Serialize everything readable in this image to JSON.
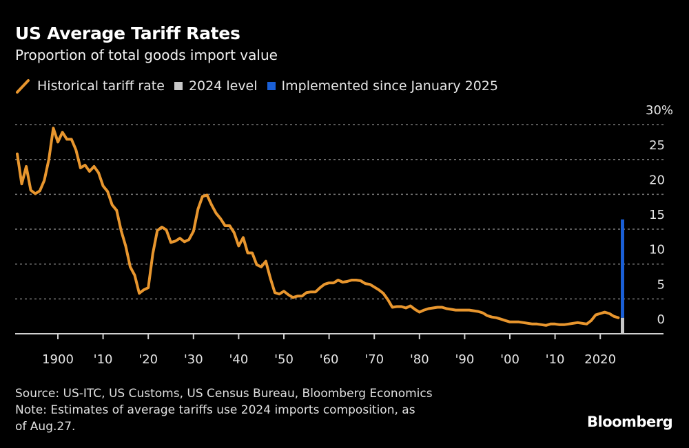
{
  "header": {
    "title": "US Average Tariff Rates",
    "subtitle": "Proportion of total goods import value"
  },
  "legend": [
    {
      "label": "Historical tariff rate",
      "color": "#e8962e",
      "icon": "line-slash"
    },
    {
      "label": "2024 level",
      "color": "#c8c8c8",
      "icon": "square"
    },
    {
      "label": "Implemented since January 2025",
      "color": "#1a5fd6",
      "icon": "square"
    }
  ],
  "footer": {
    "source": "Source: US-ITC, US Customs, US Census Bureau, Bloomberg Economics",
    "note_line1": "Note: Estimates of average tariffs use 2024 imports composition, as",
    "note_line2": "of Aug.27.",
    "logo": "Bloomberg"
  },
  "chart_data": {
    "type": "line",
    "title": "US Average Tariff Rates",
    "subtitle": "Proportion of total goods import value",
    "xlabel": "",
    "ylabel": "",
    "xlim": [
      1891,
      2025
    ],
    "ylim": [
      0,
      30
    ],
    "y_unit": "%",
    "grid": true,
    "legend_position": "top-left",
    "x_ticks": [
      1900,
      1910,
      1920,
      1930,
      1940,
      1950,
      1960,
      1970,
      1980,
      1990,
      2000,
      2010,
      2020
    ],
    "x_tick_labels": [
      "1900",
      "'10",
      "'20",
      "'30",
      "'40",
      "'50",
      "'60",
      "'70",
      "'80",
      "'90",
      "'00",
      "'10",
      "2020"
    ],
    "y_ticks": [
      0,
      5,
      10,
      15,
      20,
      25,
      30
    ],
    "y_tick_labels": [
      "0",
      "5",
      "10",
      "15",
      "20",
      "25",
      "30%"
    ],
    "series": [
      {
        "name": "Historical tariff rate",
        "color": "#e8962e",
        "x": [
          1891,
          1892,
          1893,
          1894,
          1895,
          1896,
          1897,
          1898,
          1899,
          1900,
          1901,
          1902,
          1903,
          1904,
          1905,
          1906,
          1907,
          1908,
          1909,
          1910,
          1911,
          1912,
          1913,
          1914,
          1915,
          1916,
          1917,
          1918,
          1919,
          1920,
          1921,
          1922,
          1923,
          1924,
          1925,
          1926,
          1927,
          1928,
          1929,
          1930,
          1931,
          1932,
          1933,
          1934,
          1935,
          1936,
          1937,
          1938,
          1939,
          1940,
          1941,
          1942,
          1943,
          1944,
          1945,
          1946,
          1947,
          1948,
          1949,
          1950,
          1951,
          1952,
          1953,
          1954,
          1955,
          1956,
          1957,
          1958,
          1959,
          1960,
          1961,
          1962,
          1963,
          1964,
          1965,
          1966,
          1967,
          1968,
          1969,
          1970,
          1971,
          1972,
          1973,
          1974,
          1975,
          1976,
          1977,
          1978,
          1979,
          1980,
          1981,
          1982,
          1983,
          1984,
          1985,
          1986,
          1987,
          1988,
          1989,
          1990,
          1991,
          1992,
          1993,
          1994,
          1995,
          1996,
          1997,
          1998,
          1999,
          2000,
          2001,
          2002,
          2003,
          2004,
          2005,
          2006,
          2007,
          2008,
          2009,
          2010,
          2011,
          2012,
          2013,
          2014,
          2015,
          2016,
          2017,
          2018,
          2019,
          2020,
          2021,
          2022,
          2023,
          2024
        ],
        "values": [
          25.8,
          21.5,
          24.0,
          20.6,
          20.1,
          20.5,
          22.0,
          25.0,
          29.5,
          27.5,
          28.9,
          27.9,
          27.9,
          26.4,
          23.8,
          24.2,
          23.3,
          24.0,
          23.1,
          21.2,
          20.4,
          18.5,
          17.7,
          14.8,
          12.6,
          9.6,
          8.4,
          5.8,
          6.3,
          6.6,
          11.5,
          14.8,
          15.3,
          14.9,
          13.1,
          13.3,
          13.7,
          13.2,
          13.5,
          14.7,
          17.9,
          19.7,
          19.9,
          18.5,
          17.3,
          16.5,
          15.5,
          15.5,
          14.5,
          12.6,
          13.8,
          11.6,
          11.6,
          9.9,
          9.6,
          10.4,
          8.0,
          5.9,
          5.7,
          6.1,
          5.6,
          5.2,
          5.4,
          5.4,
          5.9,
          6.0,
          6.0,
          6.6,
          7.1,
          7.3,
          7.3,
          7.7,
          7.4,
          7.5,
          7.7,
          7.7,
          7.6,
          7.2,
          7.1,
          6.7,
          6.3,
          5.8,
          4.9,
          3.8,
          3.9,
          3.9,
          3.7,
          4.0,
          3.5,
          3.1,
          3.4,
          3.6,
          3.7,
          3.8,
          3.8,
          3.6,
          3.5,
          3.4,
          3.4,
          3.4,
          3.4,
          3.3,
          3.2,
          3.0,
          2.6,
          2.4,
          2.3,
          2.1,
          1.9,
          1.7,
          1.7,
          1.7,
          1.6,
          1.5,
          1.4,
          1.4,
          1.3,
          1.2,
          1.4,
          1.4,
          1.3,
          1.3,
          1.4,
          1.5,
          1.6,
          1.5,
          1.4,
          1.9,
          2.7,
          2.9,
          3.1,
          2.9,
          2.5,
          2.3
        ]
      },
      {
        "name": "2024 level",
        "type": "bar",
        "color": "#c8c8c8",
        "x": [
          2025
        ],
        "values": [
          2.3
        ]
      },
      {
        "name": "Implemented since January 2025",
        "type": "bar",
        "stacked_on": "2024 level",
        "color": "#1a5fd6",
        "x": [
          2025
        ],
        "values": [
          14.1
        ]
      }
    ]
  }
}
